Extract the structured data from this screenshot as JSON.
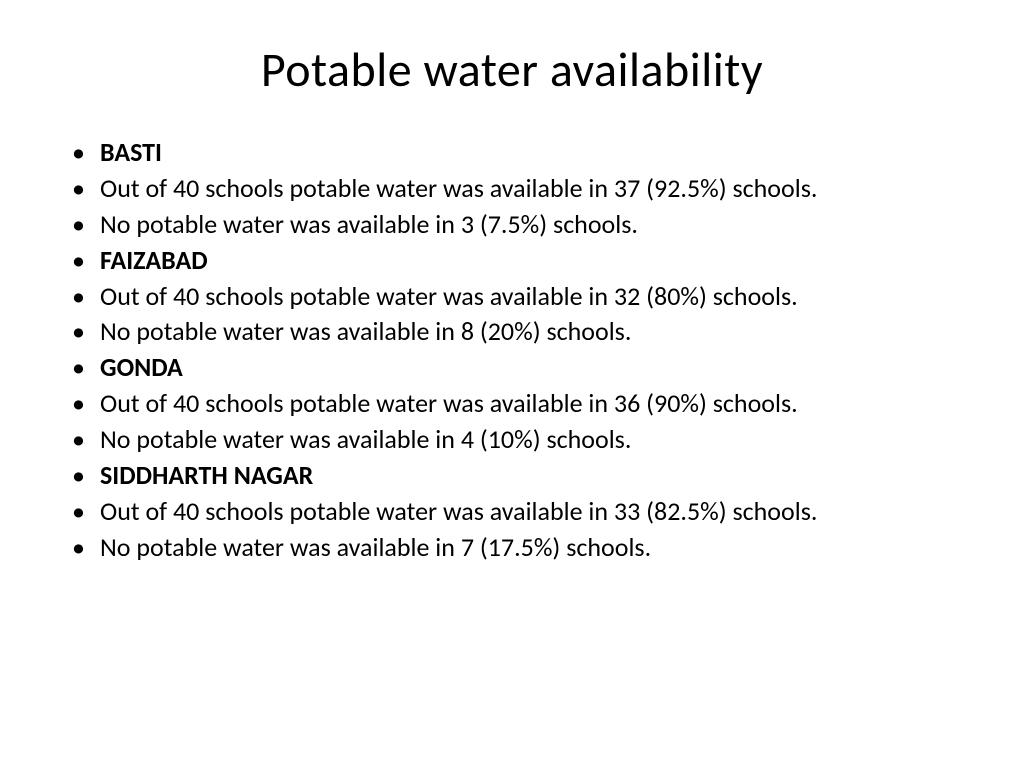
{
  "title": "Potable water availability",
  "items": [
    {
      "text": "BASTI",
      "bold": true
    },
    {
      "text": "Out of 40 schools potable water was available in 37 (92.5%) schools.",
      "bold": false
    },
    {
      "text": "No potable water was available in 3 (7.5%) schools.",
      "bold": false
    },
    {
      "text": "FAIZABAD",
      "bold": true
    },
    {
      "text": "Out of 40 schools potable water was available in 32 (80%) schools.",
      "bold": false
    },
    {
      "text": "No potable water was available in 8 (20%) schools.",
      "bold": false
    },
    {
      "text": "GONDA",
      "bold": true
    },
    {
      "text": "Out of 40 schools potable water was available in 36 (90%) schools.",
      "bold": false
    },
    {
      "text": "No potable water was available in 4 (10%) schools.",
      "bold": false
    },
    {
      "text": "SIDDHARTH NAGAR",
      "bold": true
    },
    {
      "text": "Out of 40 schools potable water was available in 33 (82.5%) schools.",
      "bold": false
    },
    {
      "text": "No potable water was available in 7 (17.5%) schools.",
      "bold": false
    }
  ],
  "colors": {
    "background": "#ffffff",
    "text": "#000000"
  },
  "typography": {
    "title_fontsize": 48,
    "body_fontsize": 26,
    "font_family": "Calibri"
  }
}
